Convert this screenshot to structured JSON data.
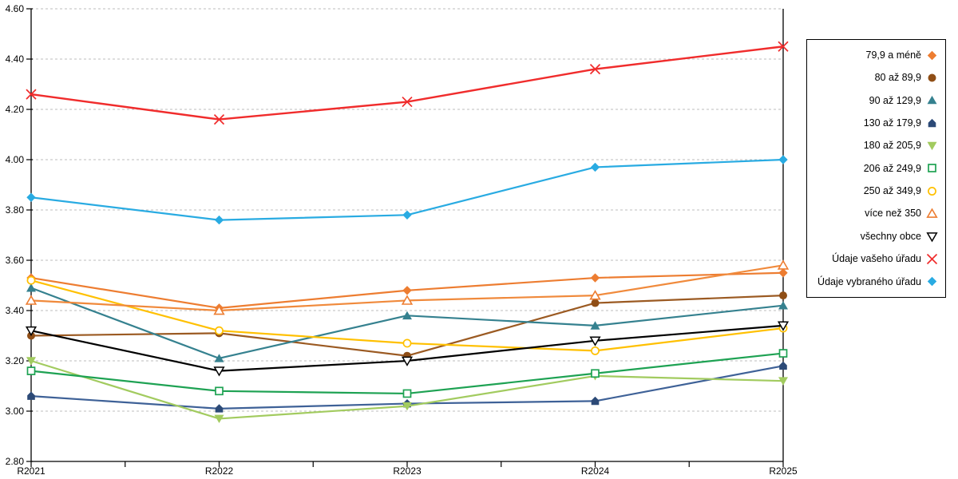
{
  "chart_data": {
    "type": "line",
    "title": "",
    "xlabel": "",
    "ylabel": "",
    "x_categories": [
      "R2021",
      "R2022",
      "R2023",
      "R2024",
      "R2025"
    ],
    "y_axis": {
      "min": 2.8,
      "max": 4.6,
      "step": 0.2,
      "tick_labels": [
        "4.60",
        "4.40",
        "4.20",
        "4.00",
        "3.80",
        "3.60",
        "3.40",
        "3.20",
        "3.00",
        "2.80"
      ]
    },
    "grid": "horizontal-dashed",
    "legend_position": "right-box",
    "series": [
      {
        "name": "79,9 a méně",
        "marker": "diamond",
        "color": "#ED7D31",
        "line_color": "#ED7D31",
        "values": [
          3.53,
          3.41,
          3.48,
          3.53,
          3.55
        ]
      },
      {
        "name": "80 až 89,9",
        "marker": "circle",
        "color": "#8F4E16",
        "line_color": "#9B5A22",
        "values": [
          3.3,
          3.31,
          3.22,
          3.43,
          3.46
        ]
      },
      {
        "name": "90 až 129,9",
        "marker": "triangle",
        "color": "#35818F",
        "line_color": "#35818F",
        "values": [
          3.49,
          3.21,
          3.38,
          3.34,
          3.42
        ]
      },
      {
        "name": "130 až 179,9",
        "marker": "pentagon",
        "color": "#2C4A77",
        "line_color": "#3E6197",
        "values": [
          3.06,
          3.01,
          3.03,
          3.04,
          3.18
        ]
      },
      {
        "name": "180 až 205,9",
        "marker": "triangle-down",
        "color": "#A2CB5F",
        "line_color": "#A2CB5F",
        "values": [
          3.2,
          2.97,
          3.02,
          3.14,
          3.12
        ]
      },
      {
        "name": "206 až 249,9",
        "marker": "square-open",
        "color": "#1EA253",
        "line_color": "#1EA253",
        "values": [
          3.16,
          3.08,
          3.07,
          3.15,
          3.23
        ]
      },
      {
        "name": "250 až 349,9",
        "marker": "circle-open",
        "color": "#FFC000",
        "line_color": "#FFC000",
        "values": [
          3.52,
          3.32,
          3.27,
          3.24,
          3.33
        ]
      },
      {
        "name": "více než 350",
        "marker": "triangle-open",
        "color": "#ED7D31",
        "line_color": "#F08A3C",
        "values": [
          3.44,
          3.4,
          3.44,
          3.46,
          3.58
        ]
      },
      {
        "name": "všechny obce",
        "marker": "triangle-down-open",
        "color": "#000000",
        "line_color": "#000000",
        "values": [
          3.32,
          3.16,
          3.2,
          3.28,
          3.34
        ]
      },
      {
        "name": "Údaje vašeho úřadu",
        "marker": "x",
        "color": "#F02C2C",
        "line_color": "#F02C2C",
        "values": [
          4.26,
          4.16,
          4.23,
          4.36,
          4.45
        ]
      },
      {
        "name": "Údaje vybraného úřadu",
        "marker": "diamond",
        "color": "#29ABE2",
        "line_color": "#29ABE2",
        "values": [
          3.85,
          3.76,
          3.78,
          3.97,
          4.0
        ]
      }
    ]
  },
  "colors": {
    "background": "#FFFFFF",
    "gridline": "#BDBDBD",
    "axis": "#000000",
    "legend_border": "#000000"
  }
}
